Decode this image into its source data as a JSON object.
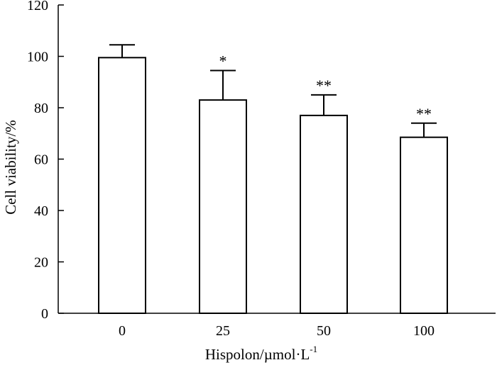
{
  "chart_data": {
    "type": "bar",
    "categories": [
      "0",
      "25",
      "50",
      "100"
    ],
    "values": [
      99.5,
      83,
      77,
      68.5
    ],
    "error": [
      5,
      11.5,
      8,
      5.5
    ],
    "significance": [
      "",
      "*",
      "**",
      "**"
    ],
    "xlabel": "Hispolon/µmol·L",
    "xlabel_superscript": "-1",
    "ylabel": "Cell viability/%",
    "ylim": [
      0,
      120
    ],
    "yticks": [
      0,
      20,
      40,
      60,
      80,
      100,
      120
    ],
    "grid": false,
    "bar_fill": "#ffffff",
    "bar_stroke": "#000000"
  }
}
